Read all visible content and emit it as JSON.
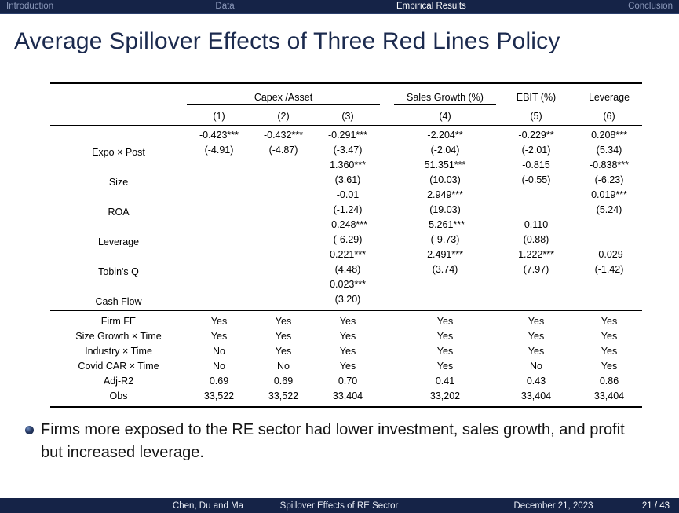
{
  "nav": {
    "items": [
      {
        "label": "Introduction",
        "active": false
      },
      {
        "label": "Data",
        "active": false
      },
      {
        "label": "Empirical Results",
        "active": true
      },
      {
        "label": "Conclusion",
        "active": false
      }
    ]
  },
  "title": "Average Spillover Effects of Three Red Lines Policy",
  "table": {
    "spacer_after_index": 2,
    "col_groups": [
      {
        "label": "Capex /Asset",
        "span": 3,
        "underline": true,
        "spacer_after": true
      },
      {
        "label": "Sales Growth (%)",
        "span": 1,
        "underline": true,
        "spacer_after": false
      },
      {
        "label": "EBIT (%)",
        "span": 1,
        "underline": false,
        "spacer_after": false
      },
      {
        "label": "Leverage",
        "span": 1,
        "underline": false,
        "spacer_after": false
      }
    ],
    "col_numbers": [
      "(1)",
      "(2)",
      "(3)",
      "(4)",
      "(5)",
      "(6)"
    ],
    "coef_rows": [
      {
        "label": "Expo × Post",
        "cells": [
          [
            "-0.423***",
            "(-4.91)"
          ],
          [
            "-0.432***",
            "(-4.87)"
          ],
          [
            "-0.291***",
            "(-3.47)"
          ],
          [
            "-2.204**",
            "(-2.04)"
          ],
          [
            "-0.229**",
            "(-2.01)"
          ],
          [
            "0.208***",
            "(5.34)"
          ]
        ]
      },
      {
        "label": "Size",
        "cells": [
          [
            "",
            ""
          ],
          [
            "",
            ""
          ],
          [
            "1.360***",
            "(3.61)"
          ],
          [
            "51.351***",
            "(10.03)"
          ],
          [
            "-0.815",
            "(-0.55)"
          ],
          [
            "-0.838***",
            "(-6.23)"
          ]
        ]
      },
      {
        "label": "ROA",
        "cells": [
          [
            "",
            ""
          ],
          [
            "",
            ""
          ],
          [
            "-0.01",
            "(-1.24)"
          ],
          [
            "2.949***",
            "(19.03)"
          ],
          [
            "",
            ""
          ],
          [
            "0.019***",
            "(5.24)"
          ]
        ]
      },
      {
        "label": "Leverage",
        "cells": [
          [
            "",
            ""
          ],
          [
            "",
            ""
          ],
          [
            "-0.248***",
            "(-6.29)"
          ],
          [
            "-5.261***",
            "(-9.73)"
          ],
          [
            "0.110",
            "(0.88)"
          ],
          [
            "",
            ""
          ]
        ]
      },
      {
        "label": "Tobin's Q",
        "cells": [
          [
            "",
            ""
          ],
          [
            "",
            ""
          ],
          [
            "0.221***",
            "(4.48)"
          ],
          [
            "2.491***",
            "(3.74)"
          ],
          [
            "1.222***",
            "(7.97)"
          ],
          [
            "-0.029",
            "(-1.42)"
          ]
        ]
      },
      {
        "label": "Cash Flow",
        "cells": [
          [
            "",
            ""
          ],
          [
            "",
            ""
          ],
          [
            "0.023***",
            "(3.20)"
          ],
          [
            "",
            ""
          ],
          [
            "",
            ""
          ],
          [
            "",
            ""
          ]
        ]
      }
    ],
    "bottom_rows": [
      {
        "label": "Firm FE",
        "values": [
          "Yes",
          "Yes",
          "Yes",
          "Yes",
          "Yes",
          "Yes"
        ]
      },
      {
        "label": "Size Growth × Time",
        "values": [
          "Yes",
          "Yes",
          "Yes",
          "Yes",
          "Yes",
          "Yes"
        ]
      },
      {
        "label": "Industry × Time",
        "values": [
          "No",
          "Yes",
          "Yes",
          "Yes",
          "Yes",
          "Yes"
        ]
      },
      {
        "label": "Covid CAR × Time",
        "values": [
          "No",
          "No",
          "Yes",
          "Yes",
          "No",
          "Yes"
        ]
      },
      {
        "label": "Adj-R2",
        "values": [
          "0.69",
          "0.69",
          "0.70",
          "0.41",
          "0.43",
          "0.86"
        ]
      },
      {
        "label": "Obs",
        "values": [
          "33,522",
          "33,522",
          "33,404",
          "33,202",
          "33,404",
          "33,404"
        ]
      }
    ]
  },
  "bullet": {
    "text": "Firms more exposed to the RE sector had lower investment, sales growth, and profit but increased leverage."
  },
  "footer": {
    "authors": "Chen, Du and Ma",
    "short_title": "Spillover Effects of RE Sector",
    "date": "December 21, 2023",
    "page": "21 / 43"
  },
  "colors": {
    "bar_navy": "#152347",
    "title_navy": "#1b2a4e",
    "inactive_nav": "#8c99ba"
  }
}
